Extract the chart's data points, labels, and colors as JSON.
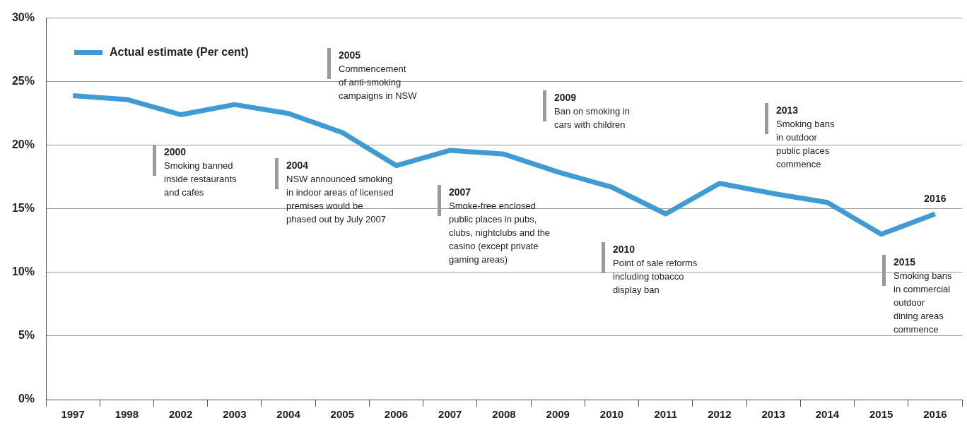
{
  "chart_data": {
    "type": "line",
    "categories": [
      "1997",
      "1998",
      "2002",
      "2003",
      "2004",
      "2005",
      "2006",
      "2007",
      "2008",
      "2009",
      "2010",
      "2011",
      "2012",
      "2013",
      "2014",
      "2015",
      "2016"
    ],
    "series": [
      {
        "name": "Actual estimate (Per cent)",
        "color": "#3f9bd3",
        "values": [
          23.9,
          23.6,
          22.4,
          23.2,
          22.5,
          21.0,
          18.4,
          19.6,
          19.3,
          17.9,
          16.7,
          14.6,
          17.0,
          16.2,
          15.5,
          13.0,
          14.6
        ]
      }
    ],
    "ylim": [
      0,
      30
    ],
    "yticks": [
      {
        "value": 0,
        "label": "0%"
      },
      {
        "value": 5,
        "label": "5%"
      },
      {
        "value": 10,
        "label": "10%"
      },
      {
        "value": 15,
        "label": "15%"
      },
      {
        "value": 20,
        "label": "20%"
      },
      {
        "value": 25,
        "label": "25%"
      },
      {
        "value": 30,
        "label": "30%"
      }
    ],
    "grid": "y",
    "legend": "top left",
    "marker": "none",
    "line_style": "solid",
    "annotations": [
      "2000\nSmoking banned\ninside restaurants\nand cafes",
      "2004\nNSW announced smoking\nin indoor areas of licensed\npremises would be\nphased out by July 2007",
      "2005\nCommencement\nof anti-smoking\ncampaigns in NSW",
      "2007\nSmoke-free enclosed\npublic places in pubs,\nclubs, nightclubs and the\ncasino (except private\ngaming areas)",
      "2009\nBan on smoking in\ncars with children",
      "2010\nPoint of sale reforms\nincluding tobacco\ndisplay ban",
      "2013\nSmoking bans\nin outdoor\npublic places\ncommence",
      "2015\nSmoking bans\nin commercial\noutdoor\ndining areas\ncommence",
      {
        "text": "2016",
        "x": "2016",
        "y": 14.6
      }
    ]
  }
}
